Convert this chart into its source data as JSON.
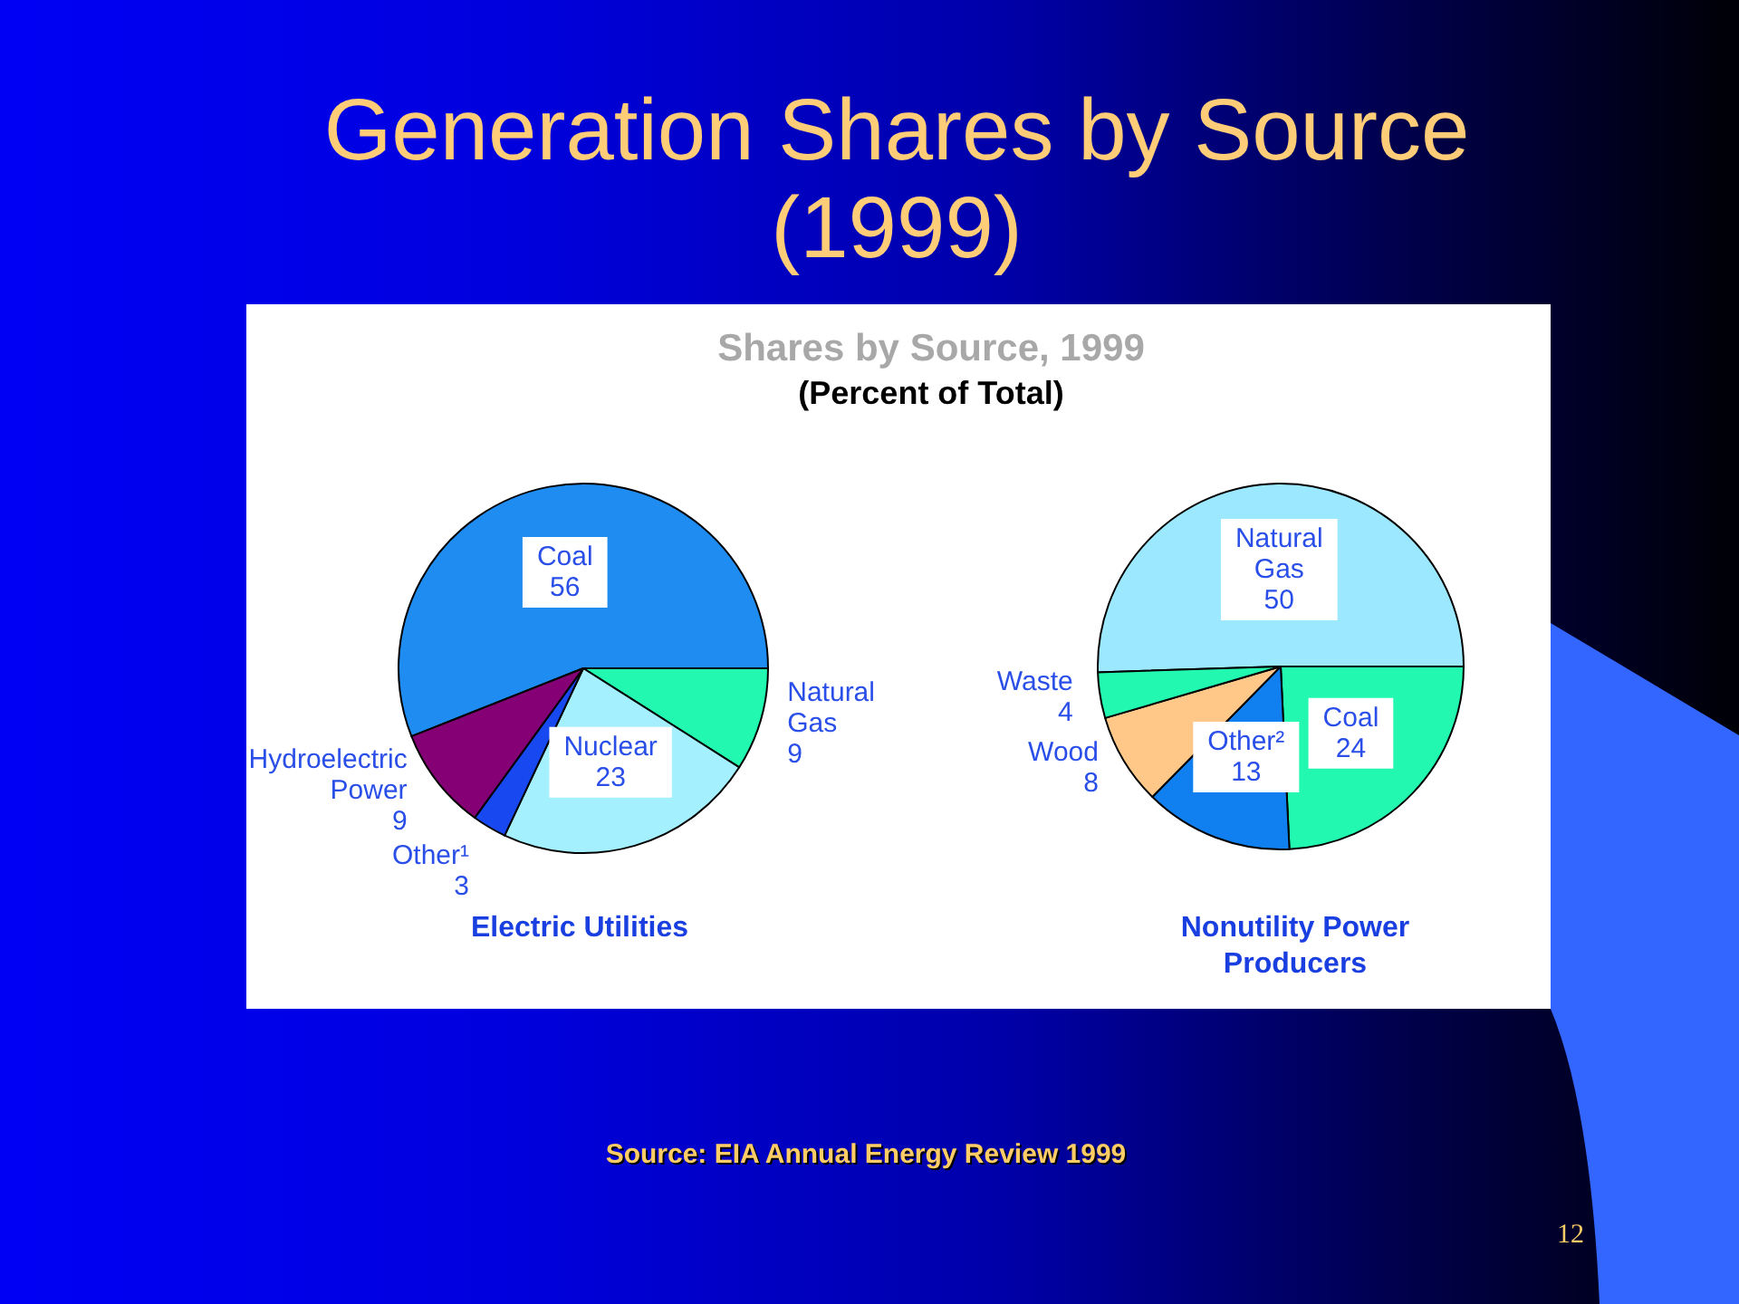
{
  "chart_data": [
    {
      "type": "pie",
      "title": "Generation Shares by Source (1999)",
      "subtitle": "Shares by Source, 1999\n(Percent of Total)",
      "xlabel": "Electric Utilities",
      "categories": [
        "Coal",
        "Natural Gas",
        "Nuclear",
        "Other¹",
        "Hydroelectric Power"
      ],
      "values": [
        56,
        9,
        23,
        3,
        9
      ],
      "colors": [
        "#1e8cf0",
        "#22f8b0",
        "#a4f0ff",
        "#1848f0",
        "#840074"
      ],
      "data_labels": true,
      "annotations": [
        "Source: EIA Annual Energy Review 1999",
        "12"
      ]
    },
    {
      "type": "pie",
      "xlabel": "Nonutility Power Producers",
      "categories": [
        "Natural Gas",
        "Coal",
        "Other²",
        "Wood",
        "Waste"
      ],
      "values": [
        50,
        24,
        13,
        8,
        4
      ],
      "colors": [
        "#9ce8ff",
        "#22f8b0",
        "#1080f0",
        "#ffc888",
        "#22f8b0"
      ],
      "data_labels": true
    }
  ]
}
